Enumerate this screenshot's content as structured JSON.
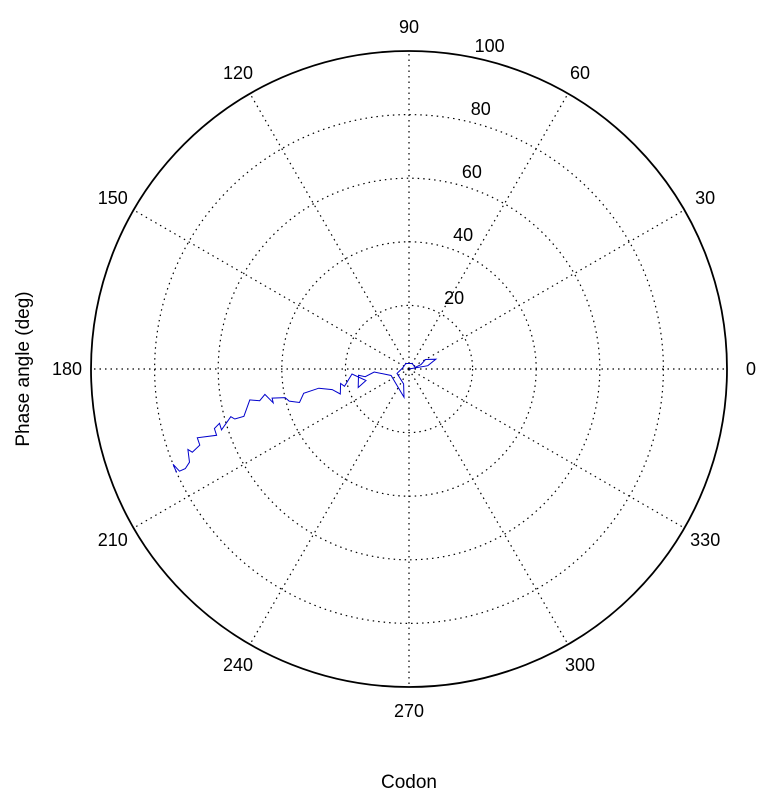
{
  "chart_data": {
    "type": "line",
    "subtype": "polar",
    "xlabel": "Codon",
    "ylabel": "Phase angle (deg)",
    "angle_ticks": [
      "0",
      "30",
      "60",
      "90",
      "120",
      "150",
      "180",
      "210",
      "240",
      "270",
      "300",
      "330"
    ],
    "radius_ticks": [
      "20",
      "40",
      "60",
      "80",
      "100"
    ],
    "rlim": [
      0,
      100
    ],
    "grid": true,
    "line_color": "#0000cc",
    "series": [
      {
        "theta": [
          0,
          10,
          20,
          30,
          20,
          15,
          60,
          120,
          170,
          200,
          250,
          260,
          200,
          185,
          190,
          187,
          200,
          195,
          185,
          195,
          192,
          200,
          195,
          192,
          193,
          197,
          195,
          193,
          192,
          194,
          190,
          192,
          191,
          196,
          196,
          195,
          198,
          196,
          197,
          199,
          198,
          200,
          201,
          200,
          203,
          204,
          204,
          202,
          204
        ],
        "r": [
          0,
          6,
          9,
          6,
          4,
          2,
          2,
          2,
          2,
          4,
          5,
          9,
          6,
          11,
          14,
          16,
          17,
          14,
          18,
          21,
          22,
          23,
          25,
          29,
          34,
          36,
          39,
          40,
          44,
          44,
          46,
          48,
          51,
          54,
          57,
          58,
          62,
          62,
          64,
          64,
          70,
          70,
          73,
          74,
          75,
          77,
          79,
          80,
          80
        ]
      }
    ]
  }
}
